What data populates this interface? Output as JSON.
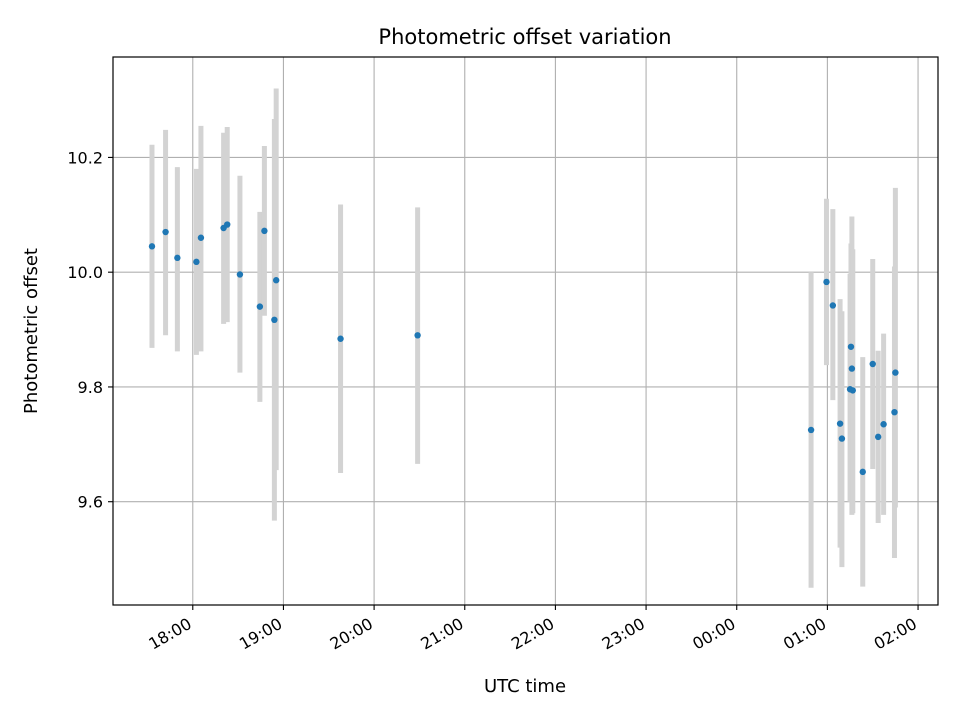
{
  "chart_data": {
    "type": "scatter",
    "title": "Photometric offset variation",
    "xlabel": "UTC time",
    "ylabel": "Photometric offset",
    "x_unit": "hours of day (UTC), continuing past midnight",
    "xlim": [
      17.12,
      26.22
    ],
    "ylim": [
      9.42,
      10.375
    ],
    "x_ticks": [
      {
        "value": 18,
        "label": "18:00"
      },
      {
        "value": 19,
        "label": "19:00"
      },
      {
        "value": 20,
        "label": "20:00"
      },
      {
        "value": 21,
        "label": "21:00"
      },
      {
        "value": 22,
        "label": "22:00"
      },
      {
        "value": 23,
        "label": "23:00"
      },
      {
        "value": 24,
        "label": "00:00"
      },
      {
        "value": 25,
        "label": "01:00"
      },
      {
        "value": 26,
        "label": "02:00"
      }
    ],
    "y_ticks": [
      {
        "value": 9.6,
        "label": "9.6"
      },
      {
        "value": 9.8,
        "label": "9.8"
      },
      {
        "value": 10.0,
        "label": "10.0"
      },
      {
        "value": 10.2,
        "label": "10.2"
      }
    ],
    "grid": true,
    "marker_color": "#1f77b4",
    "errorbar_color": "#d3d3d3",
    "points": [
      {
        "x": 17.55,
        "y": 10.045,
        "lo": 9.868,
        "hi": 10.222
      },
      {
        "x": 17.7,
        "y": 10.07,
        "lo": 9.89,
        "hi": 10.248
      },
      {
        "x": 17.83,
        "y": 10.025,
        "lo": 9.862,
        "hi": 10.183
      },
      {
        "x": 18.04,
        "y": 10.018,
        "lo": 9.856,
        "hi": 10.18
      },
      {
        "x": 18.09,
        "y": 10.06,
        "lo": 9.862,
        "hi": 10.255
      },
      {
        "x": 18.34,
        "y": 10.077,
        "lo": 9.91,
        "hi": 10.243
      },
      {
        "x": 18.38,
        "y": 10.083,
        "lo": 9.913,
        "hi": 10.253
      },
      {
        "x": 18.52,
        "y": 9.996,
        "lo": 9.825,
        "hi": 10.168
      },
      {
        "x": 18.74,
        "y": 9.94,
        "lo": 9.774,
        "hi": 10.105
      },
      {
        "x": 18.79,
        "y": 10.072,
        "lo": 9.924,
        "hi": 10.22
      },
      {
        "x": 18.9,
        "y": 9.917,
        "lo": 9.567,
        "hi": 10.267
      },
      {
        "x": 18.92,
        "y": 9.986,
        "lo": 9.655,
        "hi": 10.32
      },
      {
        "x": 19.63,
        "y": 9.884,
        "lo": 9.65,
        "hi": 10.118
      },
      {
        "x": 20.48,
        "y": 9.89,
        "lo": 9.666,
        "hi": 10.113
      },
      {
        "x": 24.82,
        "y": 9.725,
        "lo": 9.45,
        "hi": 10.0
      },
      {
        "x": 24.99,
        "y": 9.983,
        "lo": 9.838,
        "hi": 10.128
      },
      {
        "x": 25.06,
        "y": 9.942,
        "lo": 9.777,
        "hi": 10.11
      },
      {
        "x": 25.14,
        "y": 9.736,
        "lo": 9.52,
        "hi": 9.953
      },
      {
        "x": 25.16,
        "y": 9.71,
        "lo": 9.486,
        "hi": 9.932
      },
      {
        "x": 25.25,
        "y": 9.796,
        "lo": 9.6,
        "hi": 9.997
      },
      {
        "x": 25.26,
        "y": 9.87,
        "lo": 9.69,
        "hi": 10.05
      },
      {
        "x": 25.27,
        "y": 9.832,
        "lo": 9.577,
        "hi": 10.097
      },
      {
        "x": 25.28,
        "y": 9.794,
        "lo": 9.58,
        "hi": 10.04
      },
      {
        "x": 25.39,
        "y": 9.652,
        "lo": 9.452,
        "hi": 9.852
      },
      {
        "x": 25.5,
        "y": 9.84,
        "lo": 9.657,
        "hi": 10.023
      },
      {
        "x": 25.56,
        "y": 9.713,
        "lo": 9.563,
        "hi": 9.863
      },
      {
        "x": 25.62,
        "y": 9.735,
        "lo": 9.577,
        "hi": 9.893
      },
      {
        "x": 25.74,
        "y": 9.756,
        "lo": 9.502,
        "hi": 10.01
      },
      {
        "x": 25.75,
        "y": 9.825,
        "lo": 9.59,
        "hi": 10.147
      }
    ]
  }
}
